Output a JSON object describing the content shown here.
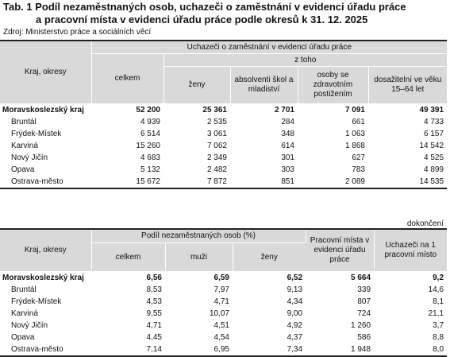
{
  "title_line1": "Tab. 1 Podíl nezaměstnaných osob, uchazeči o zaměstnání v evidenci úřadu práce",
  "title_line2": "a pracovní místa v evidenci úřadu práce podle okresů k 31. 12. 2025",
  "source": "Zdroj: Ministerstvo práce a sociálních věcí",
  "continued": "dokončení",
  "table1": {
    "col_region": "Kraj, okresy",
    "group_header": "Uchazeči o zaměstnání v evidenci úřadu práce",
    "subgroup_header": "z toho",
    "col_total": "celkem",
    "col_women": "ženy",
    "col_graduates": "absolventi škol a mladiství",
    "col_disabled": "osoby se zdravotním postižením",
    "col_age": "dosažitelní ve věku 15–64 let",
    "rows": [
      {
        "name": "Moravskoslezský kraj",
        "total": "52 200",
        "women": "25 361",
        "graduates": "2 701",
        "disabled": "7 091",
        "age": "49 391"
      },
      {
        "name": "Bruntál",
        "total": "4 939",
        "women": "2 535",
        "graduates": "284",
        "disabled": "661",
        "age": "4 733"
      },
      {
        "name": "Frýdek-Místek",
        "total": "6 514",
        "women": "3 061",
        "graduates": "348",
        "disabled": "1 063",
        "age": "6 157"
      },
      {
        "name": "Karviná",
        "total": "15 260",
        "women": "7 062",
        "graduates": "614",
        "disabled": "1 868",
        "age": "14 542"
      },
      {
        "name": "Nový Jičín",
        "total": "4 683",
        "women": "2 349",
        "graduates": "301",
        "disabled": "627",
        "age": "4 525"
      },
      {
        "name": "Opava",
        "total": "5 132",
        "women": "2 482",
        "graduates": "303",
        "disabled": "783",
        "age": "4 899"
      },
      {
        "name": "Ostrava-město",
        "total": "15 672",
        "women": "7 872",
        "graduates": "851",
        "disabled": "2 089",
        "age": "14 535"
      }
    ]
  },
  "table2": {
    "col_region": "Kraj, okresy",
    "group_header": "Podíl nezaměstnaných osob (%)",
    "col_total": "celkem",
    "col_men": "muži",
    "col_women": "ženy",
    "col_jobs": "Pracovní místa v evidenci úřadu práce",
    "col_per_job": "Uchazeči na 1 pracovní místo",
    "rows": [
      {
        "name": "Moravskoslezský kraj",
        "total": "6,56",
        "men": "6,59",
        "women": "6,52",
        "jobs": "5 664",
        "per_job": "9,2"
      },
      {
        "name": "Bruntál",
        "total": "8,53",
        "men": "7,97",
        "women": "9,13",
        "jobs": "339",
        "per_job": "14,6"
      },
      {
        "name": "Frýdek-Místek",
        "total": "4,53",
        "men": "4,71",
        "women": "4,34",
        "jobs": "807",
        "per_job": "8,1"
      },
      {
        "name": "Karviná",
        "total": "9,55",
        "men": "10,07",
        "women": "9,00",
        "jobs": "724",
        "per_job": "21,1"
      },
      {
        "name": "Nový Jičín",
        "total": "4,71",
        "men": "4,51",
        "women": "4,92",
        "jobs": "1 260",
        "per_job": "3,7"
      },
      {
        "name": "Opava",
        "total": "4,45",
        "men": "4,54",
        "women": "4,37",
        "jobs": "586",
        "per_job": "8,8"
      },
      {
        "name": "Ostrava-město",
        "total": "7,14",
        "men": "6,95",
        "women": "7,34",
        "jobs": "1 948",
        "per_job": "8,0"
      }
    ]
  }
}
